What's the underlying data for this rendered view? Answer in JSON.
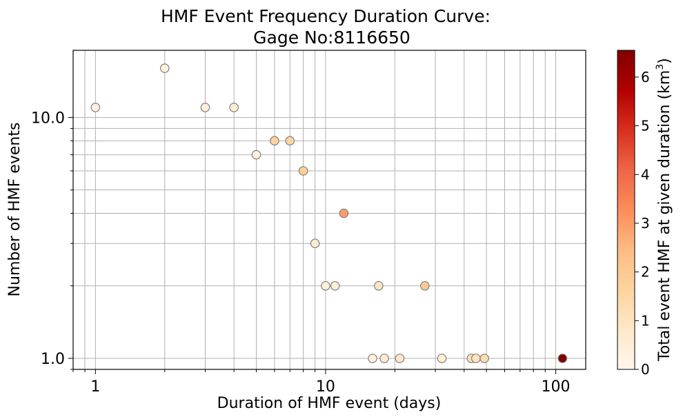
{
  "chart_data": {
    "type": "scatter",
    "title_line1": "HMF Event Frequency Duration Curve:",
    "title_line2": "Gage No:8116650",
    "xlabel": "Duration of HMF event (days)",
    "ylabel": "Number of HMF events",
    "x_scale": "log",
    "y_scale": "log",
    "xlim": [
      0.8,
      135
    ],
    "ylim": [
      0.9,
      19
    ],
    "x_ticks": [
      {
        "v": 1,
        "label": "1"
      },
      {
        "v": 10,
        "label": "10"
      },
      {
        "v": 100,
        "label": "100"
      }
    ],
    "y_ticks": [
      {
        "v": 1,
        "label": "1.0"
      },
      {
        "v": 10,
        "label": "10.0"
      }
    ],
    "grid": true,
    "colorbar": {
      "label": "Total event HMF at given duration (km",
      "label_sup": "3",
      "label_end": ")",
      "range": [
        0,
        6.55
      ],
      "ticks": [
        {
          "v": 0,
          "label": "0"
        },
        {
          "v": 1,
          "label": "1"
        },
        {
          "v": 2,
          "label": "2"
        },
        {
          "v": 3,
          "label": "3"
        },
        {
          "v": 4,
          "label": "4"
        },
        {
          "v": 5,
          "label": "5"
        },
        {
          "v": 6,
          "label": "6"
        }
      ],
      "colormap": "OrRd",
      "colors": [
        "#fff7ec",
        "#fee8c8",
        "#fdd49e",
        "#fdbb84",
        "#fc8d59",
        "#ef6548",
        "#d7301f",
        "#b30000",
        "#7f0000"
      ]
    },
    "points": [
      {
        "x": 1,
        "y": 11,
        "c": 0.35
      },
      {
        "x": 2,
        "y": 16,
        "c": 0.35
      },
      {
        "x": 3,
        "y": 11,
        "c": 0.45
      },
      {
        "x": 4,
        "y": 11,
        "c": 0.55
      },
      {
        "x": 5,
        "y": 7,
        "c": 0.35
      },
      {
        "x": 6,
        "y": 8,
        "c": 1.7
      },
      {
        "x": 7,
        "y": 8,
        "c": 1.6
      },
      {
        "x": 8,
        "y": 6,
        "c": 1.8
      },
      {
        "x": 9,
        "y": 3,
        "c": 0.6
      },
      {
        "x": 10,
        "y": 2,
        "c": 0.4
      },
      {
        "x": 11,
        "y": 2,
        "c": 0.5
      },
      {
        "x": 12,
        "y": 4,
        "c": 3.0
      },
      {
        "x": 16,
        "y": 1,
        "c": 0.3
      },
      {
        "x": 17,
        "y": 2,
        "c": 0.9
      },
      {
        "x": 18,
        "y": 1,
        "c": 0.6
      },
      {
        "x": 21,
        "y": 1,
        "c": 0.8
      },
      {
        "x": 27,
        "y": 2,
        "c": 2.0
      },
      {
        "x": 32,
        "y": 1,
        "c": 0.5
      },
      {
        "x": 43,
        "y": 1,
        "c": 1.2
      },
      {
        "x": 45,
        "y": 1,
        "c": 1.0
      },
      {
        "x": 49,
        "y": 1,
        "c": 1.3
      },
      {
        "x": 107,
        "y": 1,
        "c": 6.55
      }
    ]
  }
}
